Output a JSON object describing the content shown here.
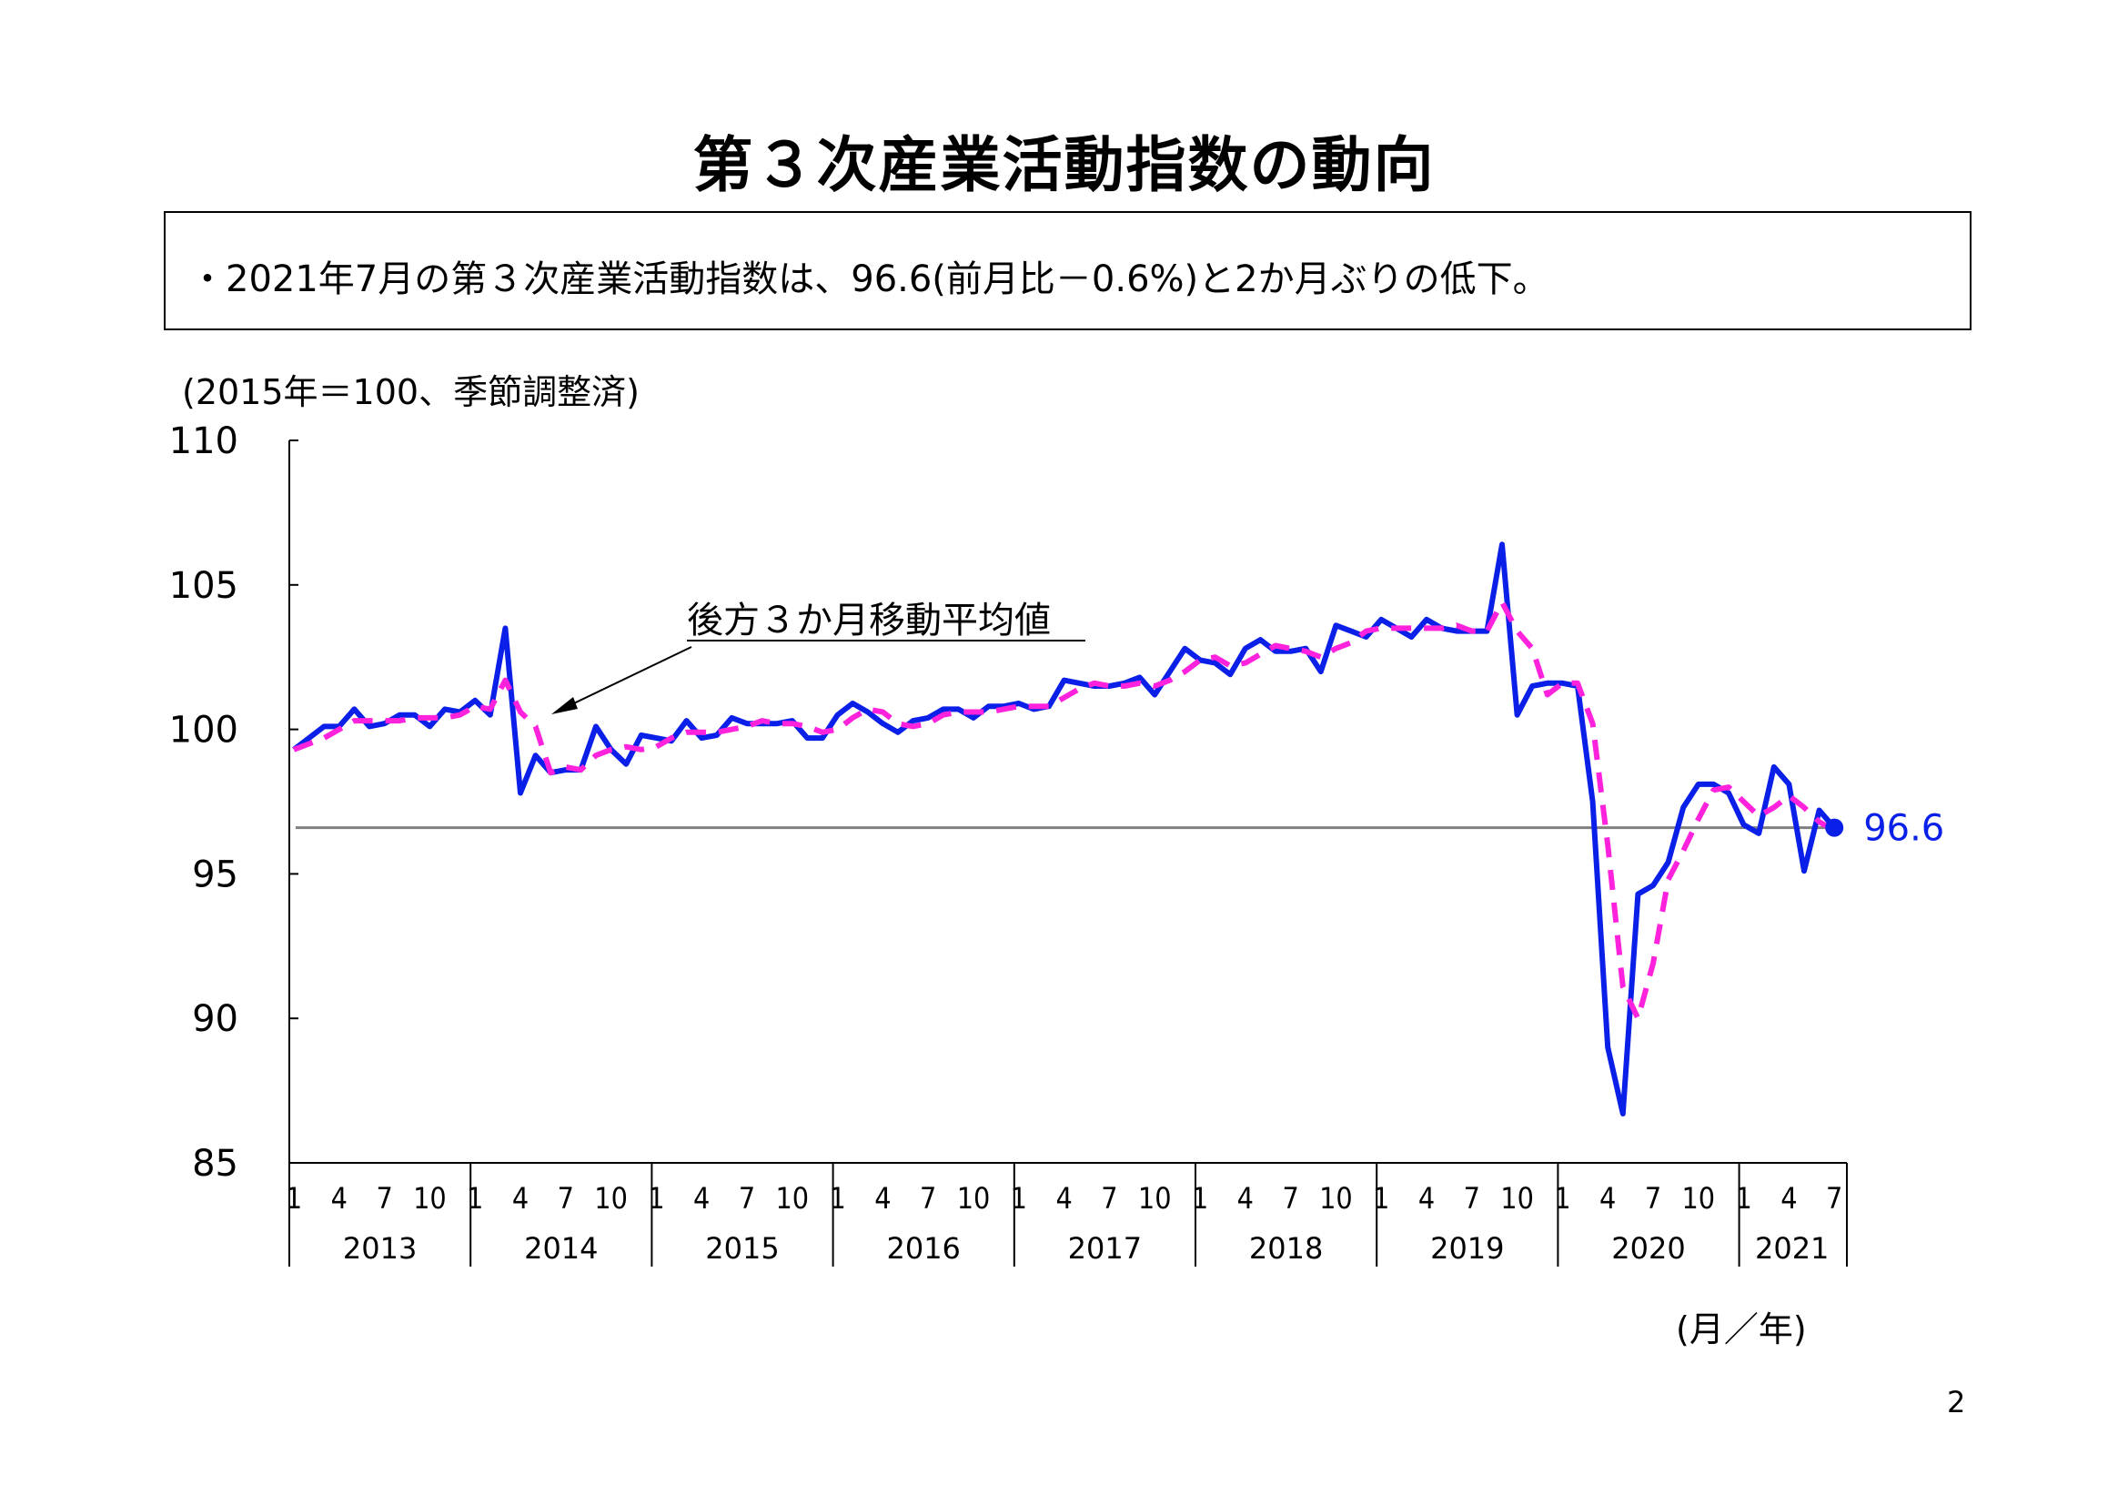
{
  "page": {
    "title": "第３次産業活動指数の動向",
    "summary": "・2021年7月の第３次産業活動指数は、96.6(前月比－0.6%)と2か月ぶりの低下。",
    "unit_label": "(2015年＝100、季節調整済)",
    "x_unit_label": "(月／年)",
    "page_number": "2"
  },
  "chart_data": {
    "type": "line",
    "ylim": [
      85,
      110
    ],
    "y_ticks": [
      85,
      90,
      95,
      100,
      105,
      110
    ],
    "month_tick_labels": [
      "1",
      "4",
      "7",
      "10"
    ],
    "years": [
      "2013",
      "2014",
      "2015",
      "2016",
      "2017",
      "2018",
      "2019",
      "2020",
      "2021"
    ],
    "last_year_month_ticks": [
      "1",
      "4",
      "7"
    ],
    "reference_line": 96.6,
    "annotation": "後方３か月移動平均値",
    "end_label": "96.6",
    "colors": {
      "index": "#0a1fe8",
      "moving_average": "#ff22dd",
      "reference": "#808080",
      "axis": "#000000"
    },
    "series": [
      {
        "name": "",
        "style": "solid",
        "values": [
          99.3,
          99.7,
          100.1,
          100.1,
          100.7,
          100.1,
          100.2,
          100.5,
          100.5,
          100.1,
          100.7,
          100.6,
          101.0,
          100.5,
          103.5,
          97.8,
          99.1,
          98.5,
          98.6,
          98.6,
          100.1,
          99.3,
          98.8,
          99.8,
          99.7,
          99.6,
          100.3,
          99.7,
          99.8,
          100.4,
          100.2,
          100.2,
          100.2,
          100.3,
          99.7,
          99.7,
          100.5,
          100.9,
          100.6,
          100.2,
          99.9,
          100.3,
          100.4,
          100.7,
          100.7,
          100.4,
          100.8,
          100.8,
          100.9,
          100.7,
          100.8,
          101.7,
          101.6,
          101.5,
          101.5,
          101.6,
          101.8,
          101.2,
          102.0,
          102.8,
          102.4,
          102.3,
          101.9,
          102.8,
          103.1,
          102.7,
          102.7,
          102.8,
          102.0,
          103.6,
          103.4,
          103.2,
          103.8,
          103.5,
          103.2,
          103.8,
          103.5,
          103.4,
          103.4,
          103.4,
          106.4,
          100.5,
          101.5,
          101.6,
          101.6,
          101.5,
          97.5,
          89.0,
          86.7,
          94.3,
          94.6,
          95.4,
          97.3,
          98.1,
          98.1,
          97.8,
          96.7,
          96.4,
          98.7,
          98.1,
          95.1,
          97.2,
          96.6
        ]
      },
      {
        "name": "後方３か月移動平均値",
        "style": "dashed",
        "values": [
          99.3,
          99.5,
          99.7,
          100.0,
          100.3,
          100.3,
          100.3,
          100.3,
          100.4,
          100.4,
          100.4,
          100.5,
          100.8,
          100.7,
          101.7,
          100.6,
          100.1,
          98.5,
          98.7,
          98.6,
          99.1,
          99.3,
          99.4,
          99.3,
          99.4,
          99.7,
          99.9,
          99.9,
          99.9,
          100.0,
          100.1,
          100.3,
          100.2,
          100.2,
          100.1,
          99.9,
          100.0,
          100.4,
          100.7,
          100.6,
          100.2,
          100.1,
          100.2,
          100.5,
          100.6,
          100.6,
          100.6,
          100.7,
          100.8,
          100.8,
          100.8,
          101.1,
          101.4,
          101.6,
          101.5,
          101.5,
          101.6,
          101.5,
          101.7,
          102.0,
          102.4,
          102.5,
          102.2,
          102.3,
          102.6,
          102.9,
          102.8,
          102.7,
          102.5,
          102.8,
          103.0,
          103.4,
          103.5,
          103.5,
          103.5,
          103.5,
          103.5,
          103.6,
          103.4,
          103.4,
          104.4,
          103.4,
          102.8,
          101.2,
          101.6,
          101.6,
          100.2,
          96.0,
          91.1,
          90.0,
          91.9,
          94.8,
          95.8,
          96.9,
          97.9,
          98.0,
          97.5,
          97.0,
          97.3,
          97.7,
          97.3,
          96.8,
          96.5
        ]
      }
    ]
  }
}
